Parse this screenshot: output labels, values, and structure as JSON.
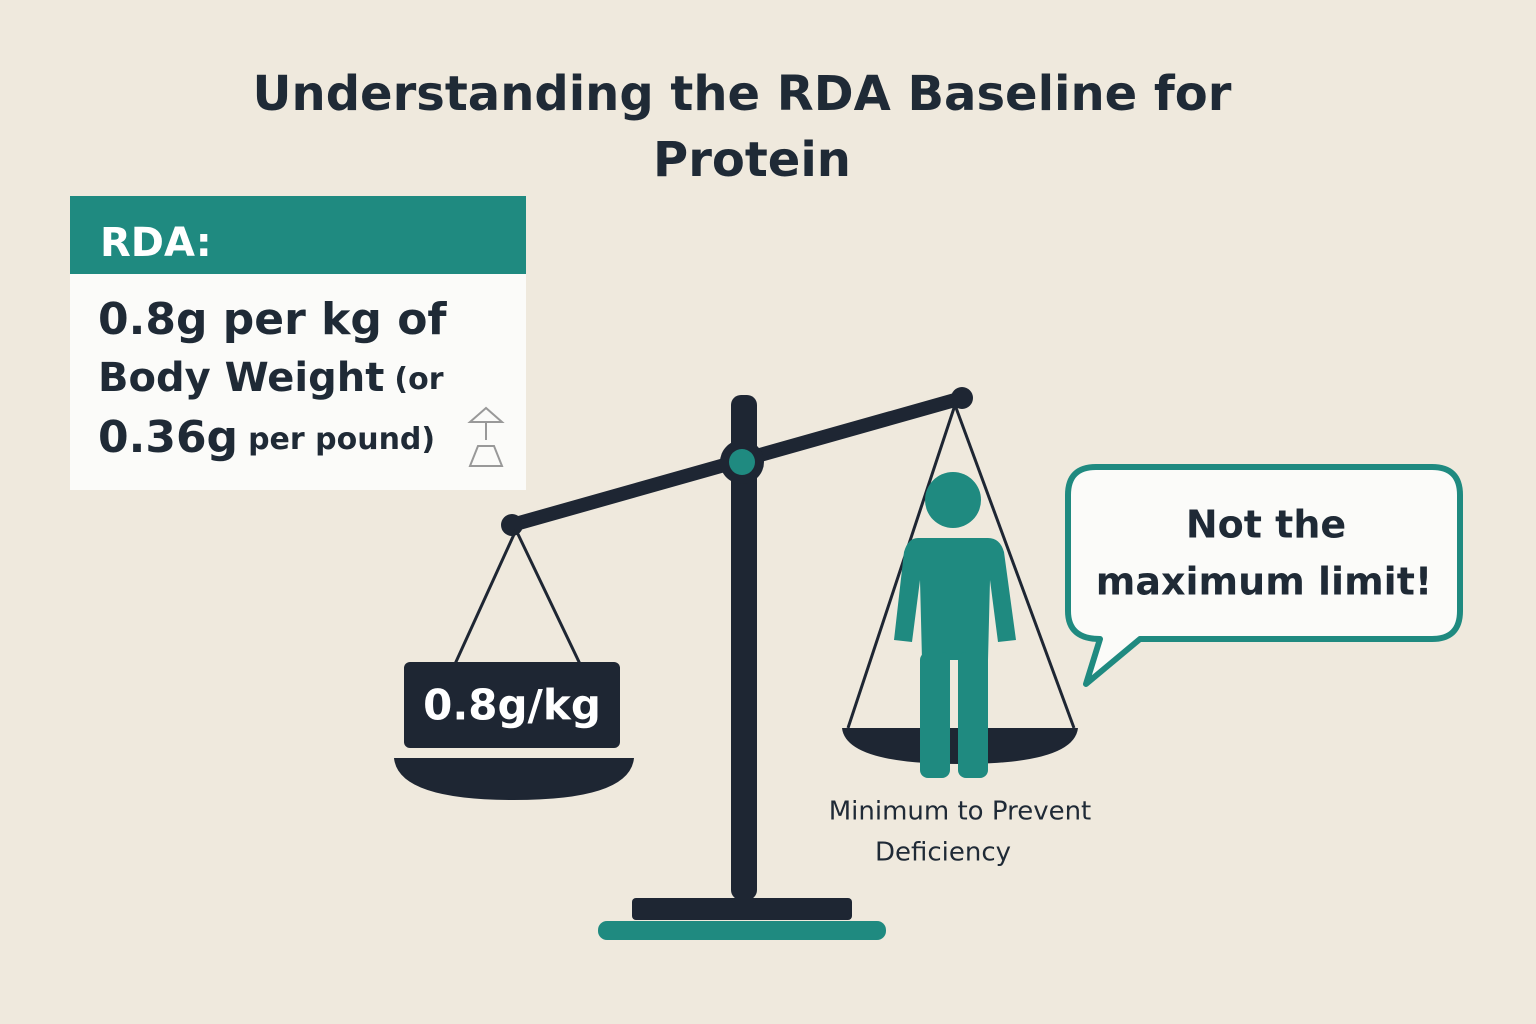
{
  "title": [
    "Understanding the RDA Baseline for",
    "Protein"
  ],
  "rda_box": {
    "label": "RDA:",
    "line1": "0.8g per kg of",
    "line2_main": "Body Weight",
    "line2_small": "(or",
    "line3_main": "0.36g",
    "line3_small": "per pound)"
  },
  "scale": {
    "weight_label": "0.8g/kg",
    "caption": [
      "Minimum to Prevent",
      "Deficiency"
    ]
  },
  "bubble": [
    "Not the",
    "maximum limit!"
  ]
}
